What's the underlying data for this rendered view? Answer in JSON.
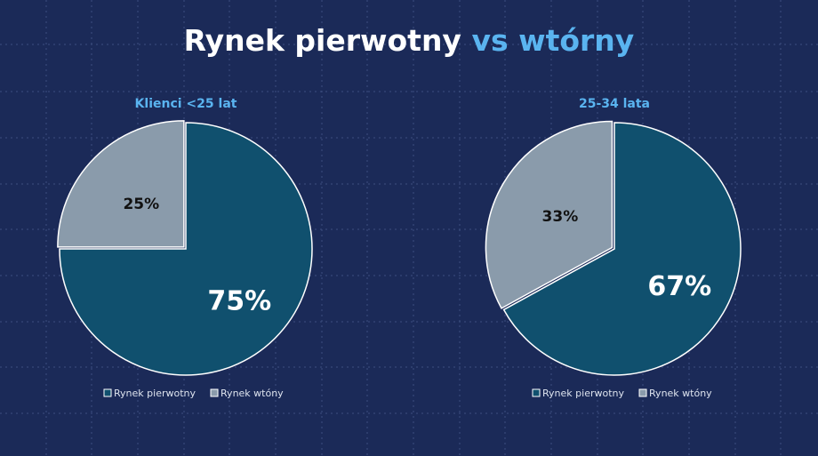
{
  "title": {
    "main": "Rynek pierwotny",
    "accent": "vs wtórny"
  },
  "chart_data": [
    {
      "type": "pie",
      "title": "Klienci <25 lat",
      "categories": [
        "Rynek pierwotny",
        "Rynek wtóny"
      ],
      "values": [
        75,
        25
      ],
      "value_labels": [
        "75%",
        "25%"
      ],
      "colors": [
        "#10506e",
        "#8a9bab"
      ]
    },
    {
      "type": "pie",
      "title": "25-34 lata",
      "categories": [
        "Rynek pierwotny",
        "Rynek wtóny"
      ],
      "values": [
        67,
        33
      ],
      "value_labels": [
        "67%",
        "33%"
      ],
      "colors": [
        "#10506e",
        "#8a9bab"
      ]
    }
  ]
}
